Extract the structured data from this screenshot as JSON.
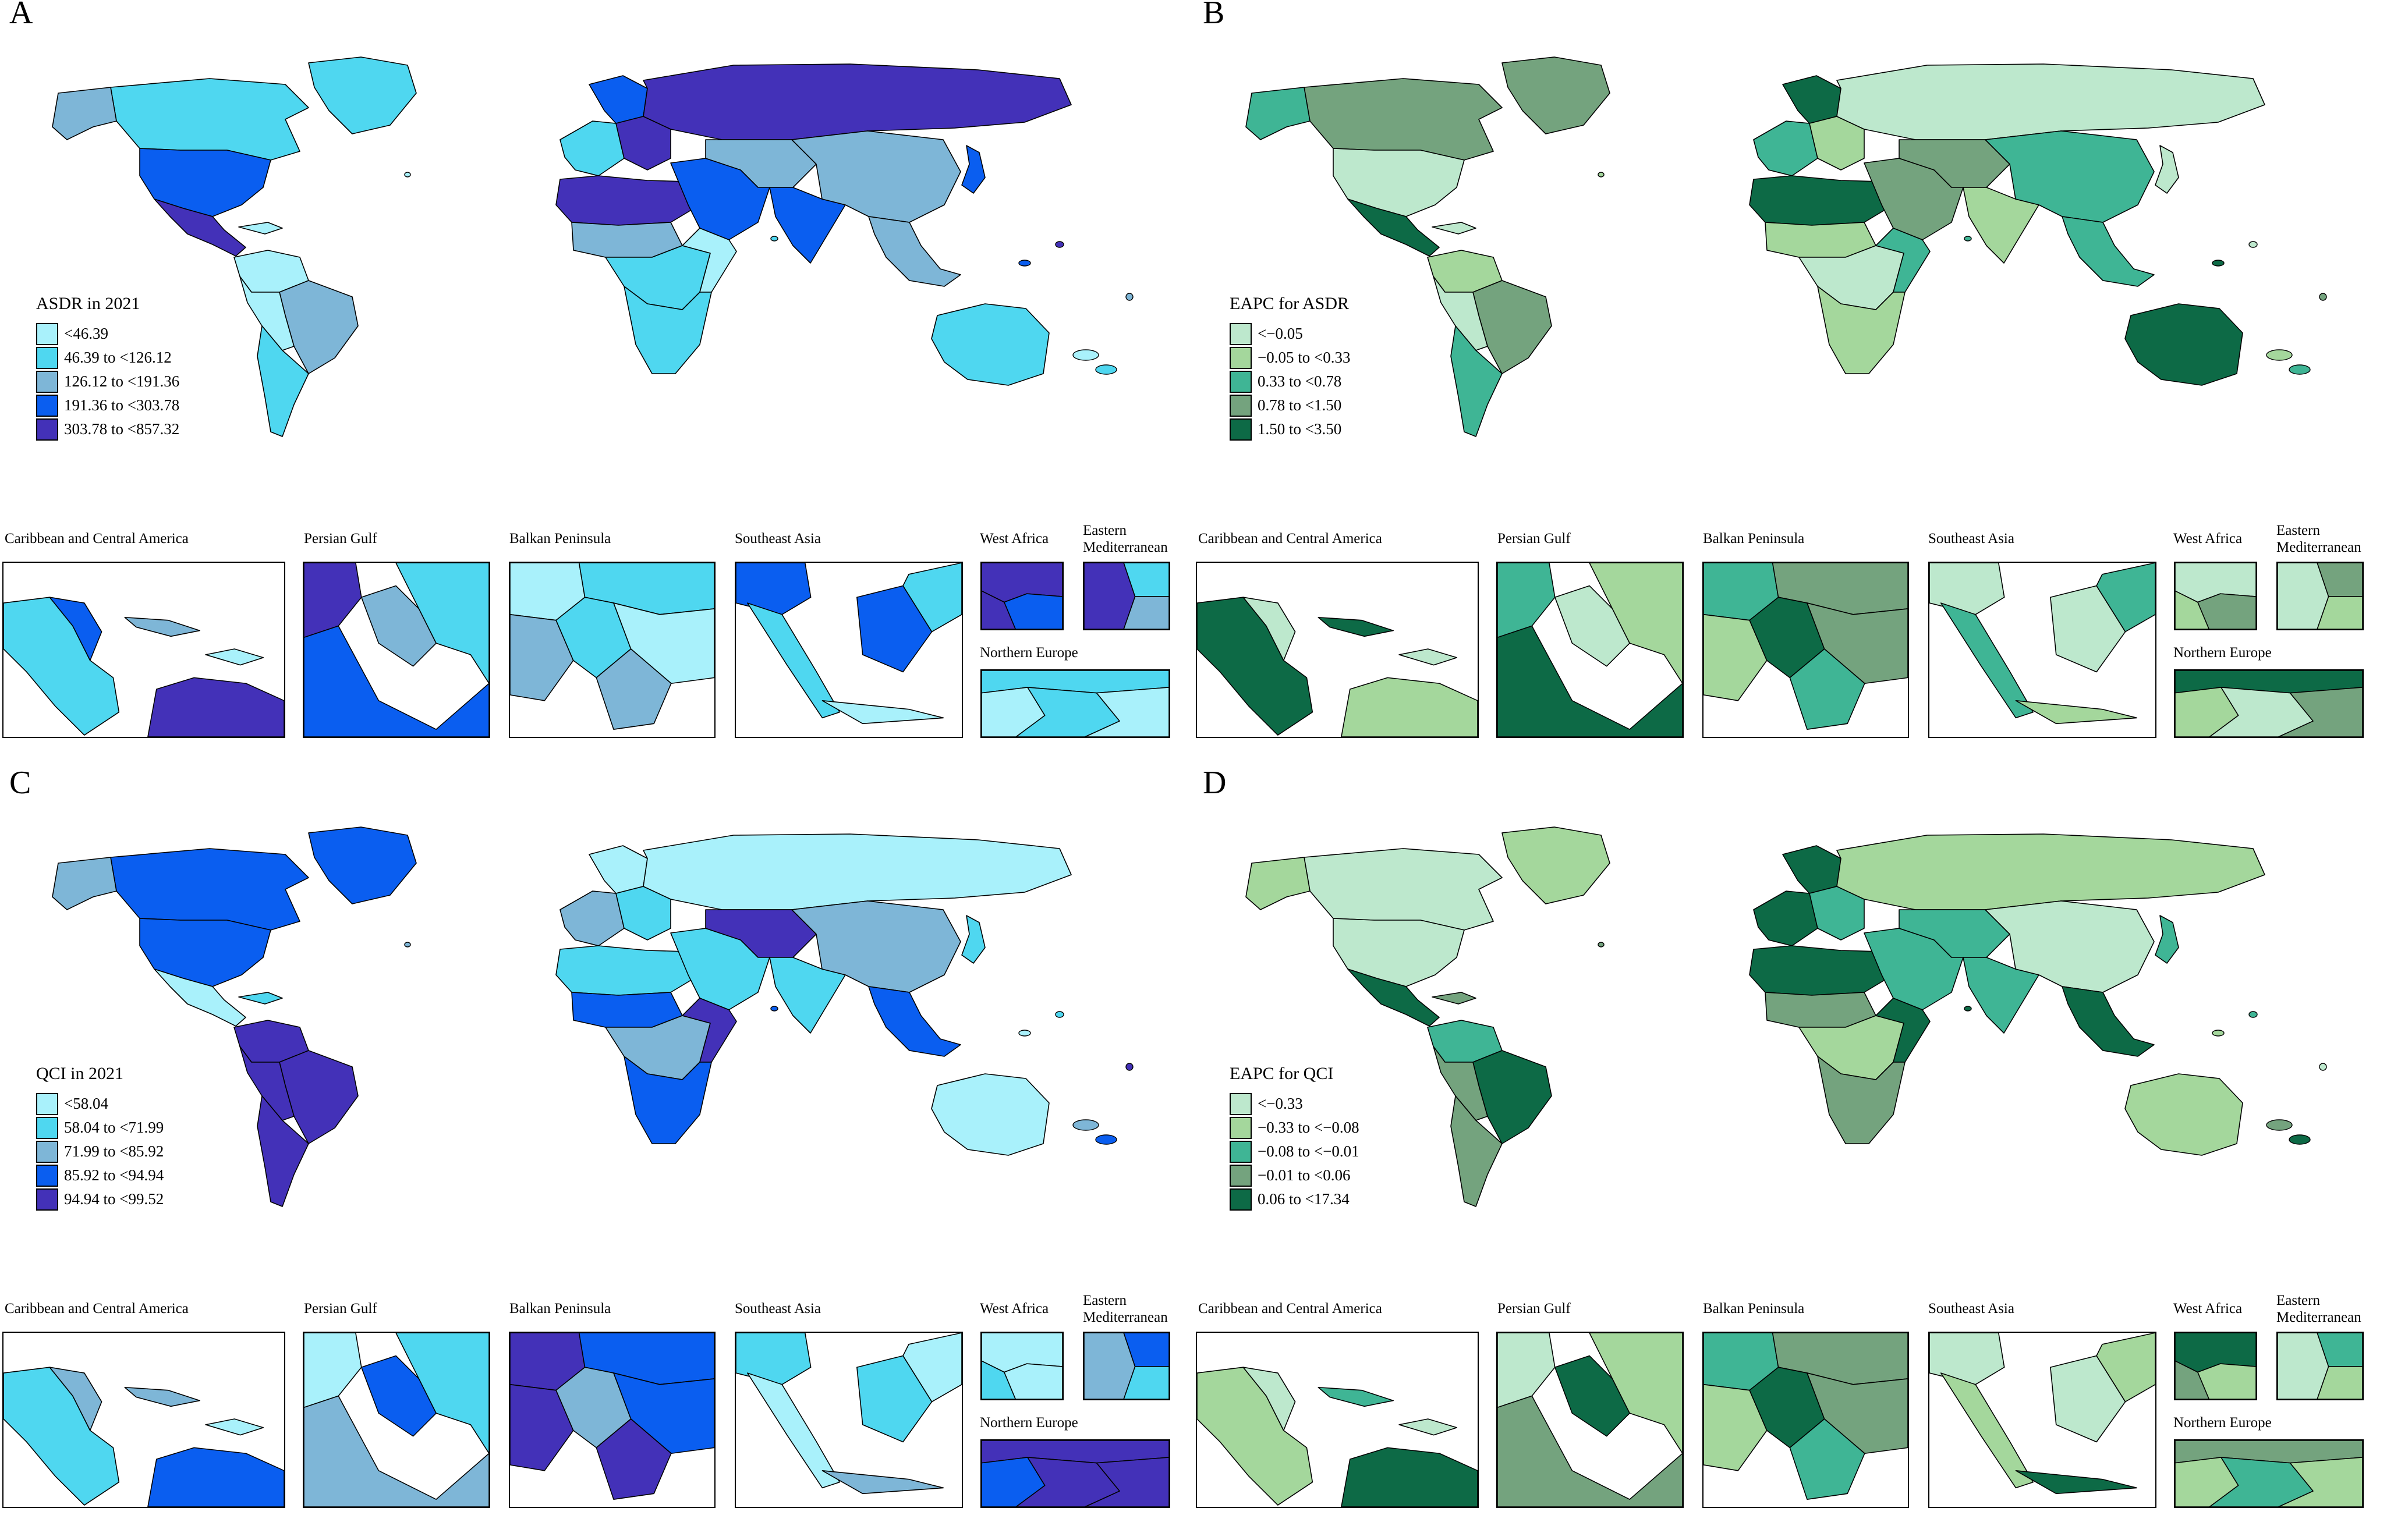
{
  "panels": [
    {
      "letter": "A",
      "legend_title": "ASDR in 2021",
      "colors": [
        "#a9f1fb",
        "#4fd7f0",
        "#7eb6d7",
        "#0a5ef0",
        "#4331b8"
      ],
      "legend": [
        "<46.39",
        "46.39 to <126.12",
        "126.12 to <191.36",
        "191.36 to <303.78",
        "303.78 to <857.32"
      ],
      "insets": [
        "Caribbean and Central America",
        "Persian Gulf",
        "Balkan Peninsula",
        "Southeast Asia",
        "West Africa",
        "Eastern Mediterranean",
        "Northern Europe"
      ]
    },
    {
      "letter": "B",
      "legend_title": "EAPC for ASDR",
      "colors": [
        "#bde8cd",
        "#a4d79c",
        "#3fb595",
        "#74a37e",
        "#0d6a46"
      ],
      "legend": [
        "<−0.05",
        "−0.05 to <0.33",
        "0.33 to <0.78",
        "0.78 to <1.50",
        "1.50 to <3.50"
      ],
      "insets": [
        "Caribbean and Central America",
        "Persian Gulf",
        "Balkan Peninsula",
        "Southeast Asia",
        "West Africa",
        "Eastern Mediterranean",
        "Northern Europe"
      ]
    },
    {
      "letter": "C",
      "legend_title": "QCI in 2021",
      "colors": [
        "#a9f1fb",
        "#4fd7f0",
        "#7eb6d7",
        "#0a5ef0",
        "#4331b8"
      ],
      "legend": [
        "<58.04",
        "58.04 to <71.99",
        "71.99 to <85.92",
        "85.92 to <94.94",
        "94.94 to <99.52"
      ],
      "insets": [
        "Caribbean and Central America",
        "Persian Gulf",
        "Balkan Peninsula",
        "Southeast Asia",
        "West Africa",
        "Eastern Mediterranean",
        "Northern Europe"
      ]
    },
    {
      "letter": "D",
      "legend_title": "EAPC for QCI",
      "colors": [
        "#bde8cd",
        "#a4d79c",
        "#3fb595",
        "#74a37e",
        "#0d6a46"
      ],
      "legend": [
        "<−0.33",
        "−0.33 to <−0.08",
        "−0.08 to <−0.01",
        "−0.01 to <0.06",
        "0.06 to <17.34"
      ],
      "insets": [
        "Caribbean and Central America",
        "Persian Gulf",
        "Balkan Peninsula",
        "Southeast Asia",
        "West Africa",
        "Eastern Mediterranean",
        "Northern Europe"
      ]
    }
  ],
  "region_classes": [
    [
      1,
      1,
      2,
      3,
      4,
      0,
      0,
      2,
      0,
      1,
      1,
      3,
      4,
      4,
      4,
      3,
      2,
      1,
      0,
      1,
      2,
      3,
      2,
      3,
      2,
      1
    ],
    [
      3,
      3,
      2,
      0,
      4,
      0,
      1,
      3,
      0,
      2,
      2,
      4,
      1,
      0,
      4,
      3,
      1,
      0,
      2,
      1,
      3,
      1,
      2,
      0,
      2,
      4
    ],
    [
      3,
      3,
      2,
      3,
      0,
      1,
      4,
      4,
      4,
      4,
      2,
      0,
      1,
      0,
      1,
      1,
      3,
      2,
      4,
      3,
      4,
      1,
      2,
      1,
      3,
      0
    ],
    [
      1,
      0,
      1,
      0,
      4,
      3,
      2,
      4,
      3,
      3,
      4,
      4,
      2,
      1,
      4,
      2,
      3,
      1,
      4,
      3,
      2,
      2,
      0,
      2,
      4,
      1
    ]
  ],
  "inset_classes": [
    [
      [
        1,
        3,
        4,
        2,
        0
      ],
      [
        4,
        3,
        2,
        1
      ],
      [
        0,
        1,
        2,
        1,
        0,
        2
      ],
      [
        3,
        1,
        3,
        1,
        0
      ],
      [
        4,
        4,
        3
      ],
      [
        4,
        1,
        2
      ],
      [
        1,
        0,
        1,
        0
      ]
    ],
    [
      [
        4,
        0,
        1,
        4,
        0
      ],
      [
        2,
        4,
        0,
        1
      ],
      [
        2,
        3,
        1,
        4,
        3,
        2
      ],
      [
        0,
        2,
        0,
        2,
        1
      ],
      [
        0,
        1,
        3
      ],
      [
        0,
        3,
        1
      ],
      [
        4,
        1,
        0,
        3
      ]
    ],
    [
      [
        1,
        2,
        3,
        2,
        0
      ],
      [
        0,
        2,
        3,
        1
      ],
      [
        4,
        3,
        4,
        2,
        3,
        4
      ],
      [
        1,
        0,
        1,
        0,
        2
      ],
      [
        0,
        1,
        0
      ],
      [
        2,
        3,
        1
      ],
      [
        4,
        3,
        4,
        4
      ]
    ],
    [
      [
        1,
        0,
        4,
        2,
        0
      ],
      [
        0,
        3,
        4,
        1
      ],
      [
        2,
        3,
        1,
        4,
        3,
        2
      ],
      [
        0,
        1,
        0,
        1,
        4
      ],
      [
        4,
        3,
        1
      ],
      [
        0,
        2,
        1
      ],
      [
        3,
        1,
        2,
        1
      ]
    ]
  ]
}
